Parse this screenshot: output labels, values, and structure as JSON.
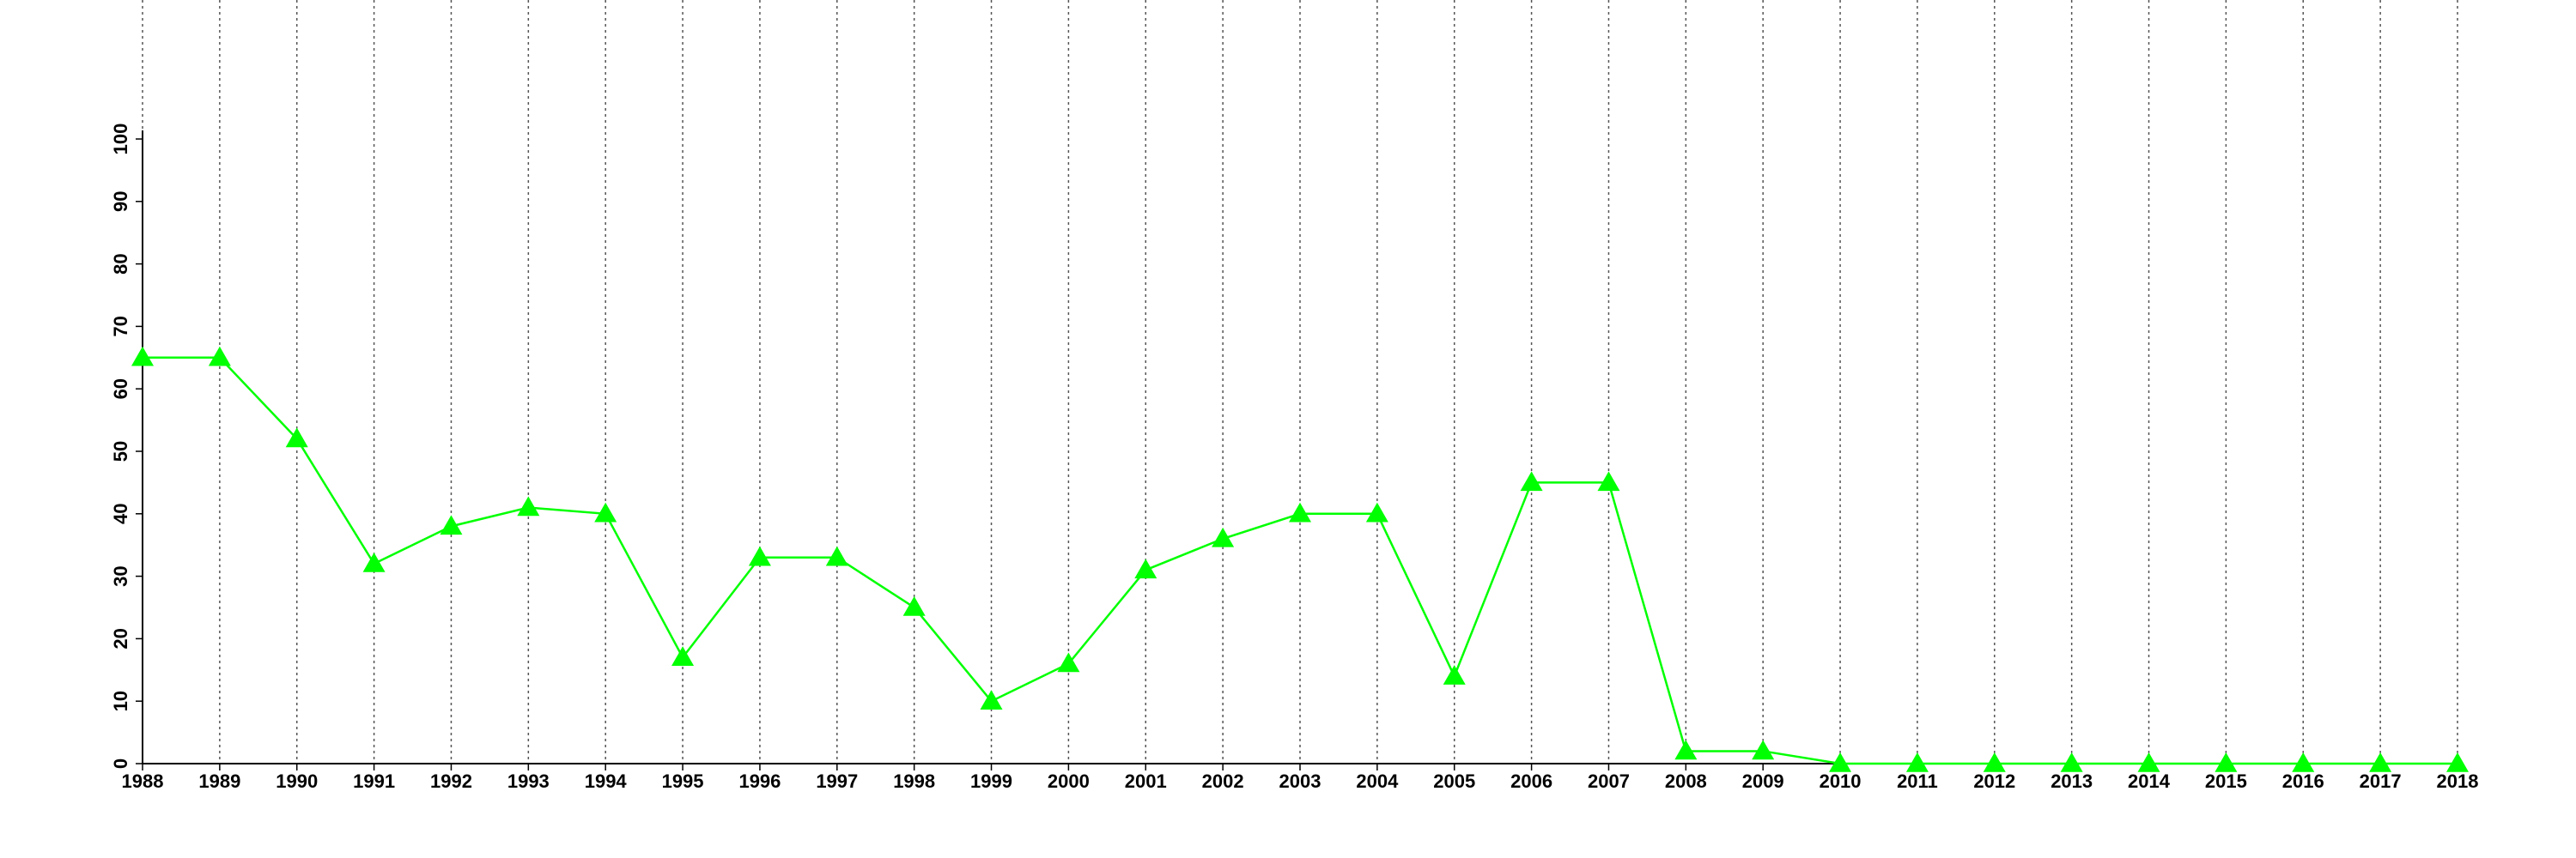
{
  "chart_data": {
    "type": "line",
    "x": [
      1988,
      1989,
      1990,
      1991,
      1992,
      1993,
      1994,
      1995,
      1996,
      1997,
      1998,
      1999,
      2000,
      2001,
      2002,
      2003,
      2004,
      2005,
      2006,
      2007,
      2008,
      2009,
      2010,
      2011,
      2012,
      2013,
      2014,
      2015,
      2016,
      2017,
      2018
    ],
    "series": [
      {
        "color": "#00ff00",
        "marker": "triangle",
        "values": [
          65,
          65,
          52,
          32,
          38,
          41,
          40,
          17,
          33,
          33,
          25,
          10,
          16,
          31,
          36,
          40,
          40,
          14,
          45,
          45,
          2,
          2,
          0,
          0,
          0,
          0,
          0,
          0,
          0,
          0,
          0
        ]
      }
    ],
    "xlim": [
      1988,
      2018
    ],
    "xticks": [
      1988,
      1989,
      1990,
      1991,
      1992,
      1993,
      1994,
      1995,
      1996,
      1997,
      1998,
      1999,
      2000,
      2001,
      2002,
      2003,
      2004,
      2005,
      2006,
      2007,
      2008,
      2009,
      2010,
      2011,
      2012,
      2013,
      2014,
      2015,
      2016,
      2017,
      2018
    ],
    "ylim": [
      0,
      100
    ],
    "yticks": [
      0,
      10,
      20,
      30,
      40,
      50,
      60,
      70,
      80,
      90,
      100
    ],
    "grid": "x"
  }
}
